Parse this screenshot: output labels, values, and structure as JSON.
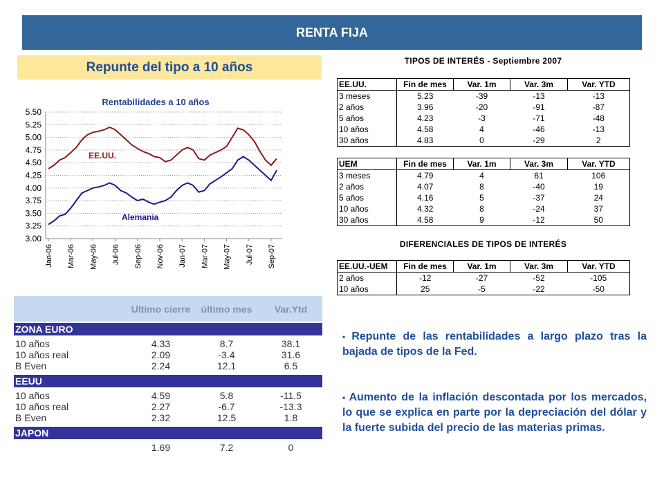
{
  "header": {
    "title": "RENTA FIJA",
    "subtitle": "Repunte del tipo a 10 años"
  },
  "chart_data": {
    "type": "line",
    "title": "Rentabilidades a 10 años",
    "categories": [
      "Jan-06",
      null,
      null,
      null,
      "Mar-06",
      null,
      null,
      null,
      "May-06",
      null,
      null,
      null,
      "Jul-06",
      null,
      null,
      null,
      "Sep-06",
      null,
      null,
      null,
      "Nov-06",
      null,
      null,
      null,
      "Jan-07",
      null,
      null,
      null,
      "Mar-07",
      null,
      null,
      null,
      "May-07",
      null,
      null,
      null,
      "Jul-07",
      null,
      null,
      null,
      "Sep-07",
      null
    ],
    "series": [
      {
        "name": "EE.UU.",
        "color": "#8b1a1a",
        "values": [
          4.38,
          4.45,
          4.55,
          4.6,
          4.7,
          4.8,
          4.95,
          5.05,
          5.1,
          5.12,
          5.15,
          5.2,
          5.15,
          5.05,
          4.95,
          4.85,
          4.78,
          4.72,
          4.68,
          4.62,
          4.6,
          4.52,
          4.55,
          4.65,
          4.75,
          4.8,
          4.75,
          4.58,
          4.55,
          4.65,
          4.7,
          4.75,
          4.82,
          5.0,
          5.18,
          5.15,
          5.05,
          4.92,
          4.72,
          4.55,
          4.45,
          4.58
        ]
      },
      {
        "name": "Alemania",
        "color": "#1a1a8c",
        "values": [
          3.28,
          3.35,
          3.45,
          3.48,
          3.6,
          3.75,
          3.9,
          3.95,
          4.0,
          4.02,
          4.05,
          4.1,
          4.05,
          3.95,
          3.9,
          3.82,
          3.75,
          3.78,
          3.72,
          3.68,
          3.72,
          3.75,
          3.82,
          3.95,
          4.05,
          4.1,
          4.05,
          3.92,
          3.95,
          4.08,
          4.15,
          4.22,
          4.3,
          4.38,
          4.55,
          4.62,
          4.55,
          4.45,
          4.35,
          4.25,
          4.15,
          4.35
        ]
      }
    ],
    "ylim": [
      3,
      5.5
    ],
    "yticks": [
      {
        "value": 3,
        "label": "3.00"
      },
      3.25,
      {
        "value": 3.5,
        "label": "3.50"
      },
      3.75,
      {
        "value": 4,
        "label": "4.00"
      },
      4.25,
      {
        "value": 4.5,
        "label": "4.50"
      },
      4.75,
      {
        "value": 5,
        "label": "5.00"
      },
      5.25,
      {
        "value": 5.5,
        "label": "5.50"
      }
    ],
    "grid": true
  },
  "rates": {
    "title": "TIPOS DE INTERÉS - Septiembre 2007",
    "tables": [
      {
        "header": [
          "EE.UU.",
          "Fin de mes",
          "Var. 1m",
          "Var. 3m",
          "Var. YTD"
        ],
        "rows": [
          [
            "3 meses",
            "5.23",
            "-39",
            "-13",
            "-13"
          ],
          [
            "2 años",
            "3.96",
            "-20",
            "-91",
            "-87"
          ],
          [
            "5 años",
            "4.23",
            "-3",
            "-71",
            "-48"
          ],
          [
            "10 años",
            "4.58",
            "4",
            "-46",
            "-13"
          ],
          [
            "30 años",
            "4.83",
            "0",
            "-29",
            "2"
          ]
        ]
      },
      {
        "header": [
          "UEM",
          "Fin de mes",
          "Var. 1m",
          "Var. 3m",
          "Var. YTD"
        ],
        "rows": [
          [
            "3 meses",
            "4.79",
            "4",
            "61",
            "106"
          ],
          [
            "2 años",
            "4.07",
            "8",
            "-40",
            "19"
          ],
          [
            "5 años",
            "4.16",
            "5",
            "-37",
            "24"
          ],
          [
            "10 años",
            "4.32",
            "8",
            "-24",
            "37"
          ],
          [
            "30 años",
            "4.58",
            "9",
            "-12",
            "50"
          ]
        ]
      }
    ]
  },
  "spreads": {
    "title": "DIFERENCIALES DE TIPOS DE INTERÉS",
    "table": {
      "header": [
        "EE.UU.-UEM",
        "Fin de mes",
        "Var. 1m",
        "Var. 3m",
        "Var. YTD"
      ],
      "rows": [
        [
          "2 años",
          "-12",
          "-27",
          "-52",
          "-105"
        ],
        [
          "10 años",
          "25",
          "-5",
          "-22",
          "-50"
        ]
      ]
    }
  },
  "summary": {
    "header": [
      "Ultimo cierre",
      "último mes",
      "Var.Ytd"
    ],
    "sections": [
      {
        "name": "ZONA EURO",
        "rows": [
          {
            "label": "10 años",
            "values": [
              "4.33",
              "8.7",
              "38.1"
            ]
          },
          {
            "label": "10 años real",
            "values": [
              "2.09",
              "-3.4",
              "31.6"
            ]
          },
          {
            "label": "B Even",
            "values": [
              "2.24",
              "12.1",
              "6.5"
            ]
          }
        ]
      },
      {
        "name": "EEUU",
        "rows": [
          {
            "label": "10 años",
            "values": [
              "4.59",
              "5.8",
              "-11.5"
            ]
          },
          {
            "label": "10 años real",
            "values": [
              "2.27",
              "-6.7",
              "-13.3"
            ]
          },
          {
            "label": "B Even",
            "values": [
              "2.32",
              "12.5",
              "1.8"
            ]
          }
        ]
      },
      {
        "name": "JAPON",
        "rows": [
          {
            "values": [
              "1.69",
              "7.2",
              "0"
            ]
          }
        ]
      }
    ]
  },
  "bullets": [
    "Repunte de las rentabilidades a largo plazo tras la bajada de tipos de la Fed.",
    "Aumento de la inflación descontada por los mercados, lo que se explica en parte por la depreciación del dólar y la fuerte subida del precio de las materias primas."
  ]
}
